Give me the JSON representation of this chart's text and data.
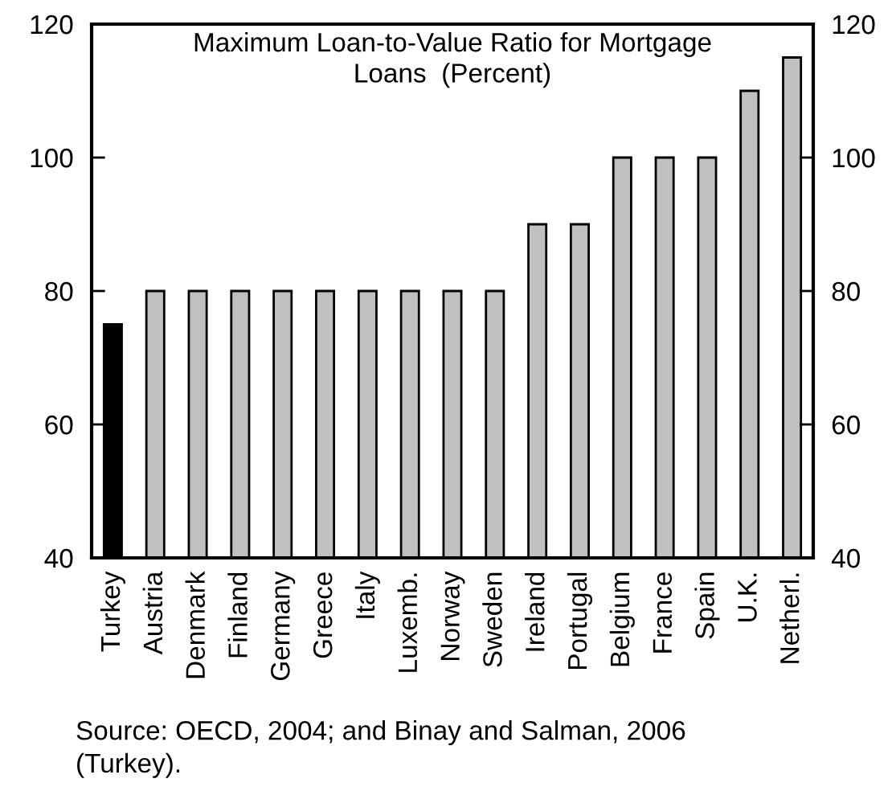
{
  "chart_data": {
    "type": "bar",
    "title": "Maximum Loan-to-Value Ratio for Mortgage\nLoans  (Percent)",
    "categories": [
      "Turkey",
      "Austria",
      "Denmark",
      "Finland",
      "Germany",
      "Greece",
      "Italy",
      "Luxemb.",
      "Norway",
      "Sweden",
      "Ireland",
      "Portugal",
      "Belgium",
      "France",
      "Spain",
      "U.K.",
      "Netherl."
    ],
    "values": [
      75,
      80,
      80,
      80,
      80,
      80,
      80,
      80,
      80,
      80,
      90,
      90,
      100,
      100,
      100,
      110,
      115
    ],
    "colors": [
      "#000000",
      "#c0c0c0",
      "#c0c0c0",
      "#c0c0c0",
      "#c0c0c0",
      "#c0c0c0",
      "#c0c0c0",
      "#c0c0c0",
      "#c0c0c0",
      "#c0c0c0",
      "#c0c0c0",
      "#c0c0c0",
      "#c0c0c0",
      "#c0c0c0",
      "#c0c0c0",
      "#c0c0c0",
      "#c0c0c0"
    ],
    "ylim": [
      40,
      120
    ],
    "yticks": [
      40,
      60,
      80,
      100,
      120
    ],
    "y2lim": [
      40,
      120
    ],
    "y2ticks": [
      40,
      60,
      80,
      100,
      120
    ],
    "grid": false,
    "legend": false,
    "annotations": [
      "Source: OECD, 2004; and Binay and Salman, 2006\n(Turkey)."
    ]
  }
}
